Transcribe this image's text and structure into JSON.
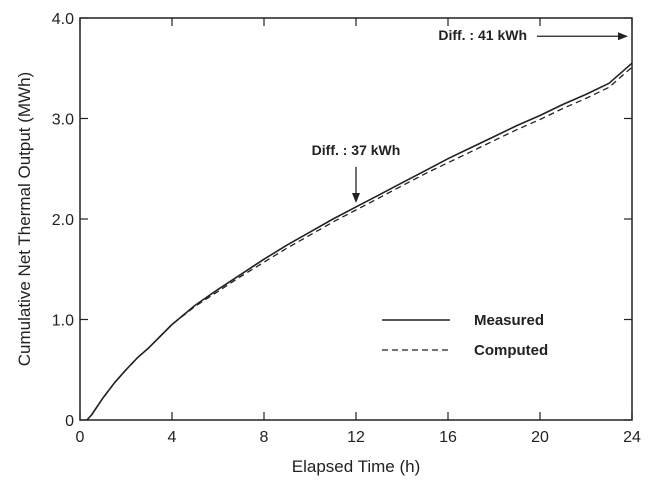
{
  "chart_data": {
    "type": "line",
    "title": "",
    "xlabel": "Elapsed Time (h)",
    "ylabel": "Cumulative Net Thermal Output (MWh)",
    "xlim": [
      0,
      24
    ],
    "ylim": [
      0,
      4.0
    ],
    "xticks": [
      "0",
      "4",
      "8",
      "12",
      "16",
      "20",
      "24"
    ],
    "yticks": [
      "0",
      "1.0",
      "2.0",
      "3.0",
      "4.0"
    ],
    "grid": false,
    "legend_position": "lower-right",
    "series": [
      {
        "name": "Measured",
        "style": "solid",
        "x": [
          0.3,
          0.5,
          1,
          1.5,
          2,
          2.5,
          3,
          4,
          5,
          6,
          7,
          8,
          9,
          10,
          11,
          12,
          13,
          14,
          15,
          16,
          17,
          18,
          19,
          20,
          21,
          22,
          23,
          24
        ],
        "y": [
          0.0,
          0.05,
          0.22,
          0.37,
          0.5,
          0.62,
          0.72,
          0.95,
          1.14,
          1.3,
          1.45,
          1.6,
          1.74,
          1.87,
          2.0,
          2.12,
          2.24,
          2.36,
          2.48,
          2.6,
          2.71,
          2.82,
          2.93,
          3.03,
          3.14,
          3.24,
          3.35,
          3.55
        ]
      },
      {
        "name": "Computed",
        "style": "dashed",
        "x": [
          0.3,
          0.5,
          1,
          1.5,
          2,
          2.5,
          3,
          4,
          5,
          6,
          7,
          8,
          9,
          10,
          11,
          12,
          13,
          14,
          15,
          16,
          17,
          18,
          19,
          20,
          21,
          22,
          23,
          24
        ],
        "y": [
          0.0,
          0.05,
          0.22,
          0.37,
          0.5,
          0.62,
          0.72,
          0.95,
          1.13,
          1.28,
          1.43,
          1.57,
          1.71,
          1.84,
          1.97,
          2.09,
          2.21,
          2.33,
          2.45,
          2.56,
          2.67,
          2.78,
          2.89,
          2.99,
          3.1,
          3.2,
          3.31,
          3.51
        ]
      }
    ],
    "annotations": [
      {
        "text": "Diff. : 37 kWh",
        "x": 12,
        "y": 2.12,
        "arrow": "down"
      },
      {
        "text": "Diff. : 41 kWh",
        "x": 24,
        "y": 3.53,
        "arrow": "right"
      }
    ]
  }
}
